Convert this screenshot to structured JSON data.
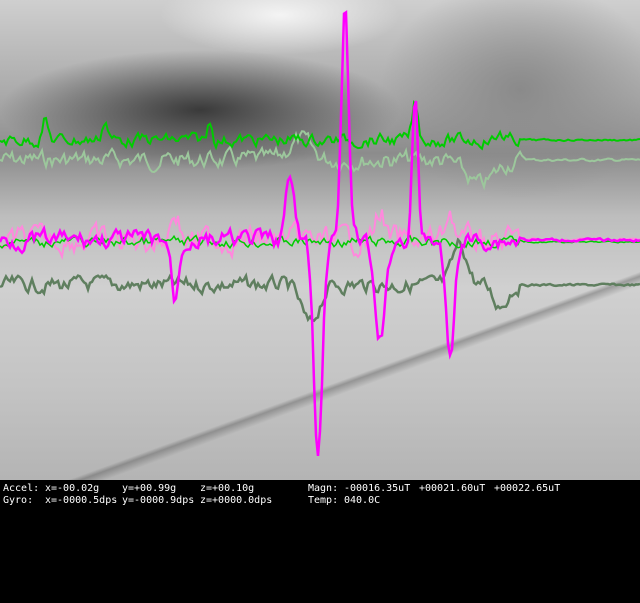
{
  "hud": {
    "accel": {
      "label": "Accel:",
      "x": "x=-00.02g",
      "y": "y=+00.99g",
      "z": "z=+00.10g"
    },
    "gyro": {
      "label": "Gyro:",
      "x": "x=-0000.5dps",
      "y": "y=-0000.9dps",
      "z": "z=+0000.0dps"
    },
    "magn": {
      "label": "Magn:",
      "x": "-00016.35uT",
      "y": "+00021.60uT",
      "z": "+00022.65uT"
    },
    "temp": {
      "label": "Temp:",
      "value": "040.0C"
    }
  },
  "colors": {
    "accel": "#00cc00",
    "accel_faded": "#9cc79c",
    "gyro": "#ff00ff",
    "gyro_faded": "#ff88dd",
    "magn": "#5f7f5f",
    "text": "#ffffff",
    "bar": "#000000"
  }
}
